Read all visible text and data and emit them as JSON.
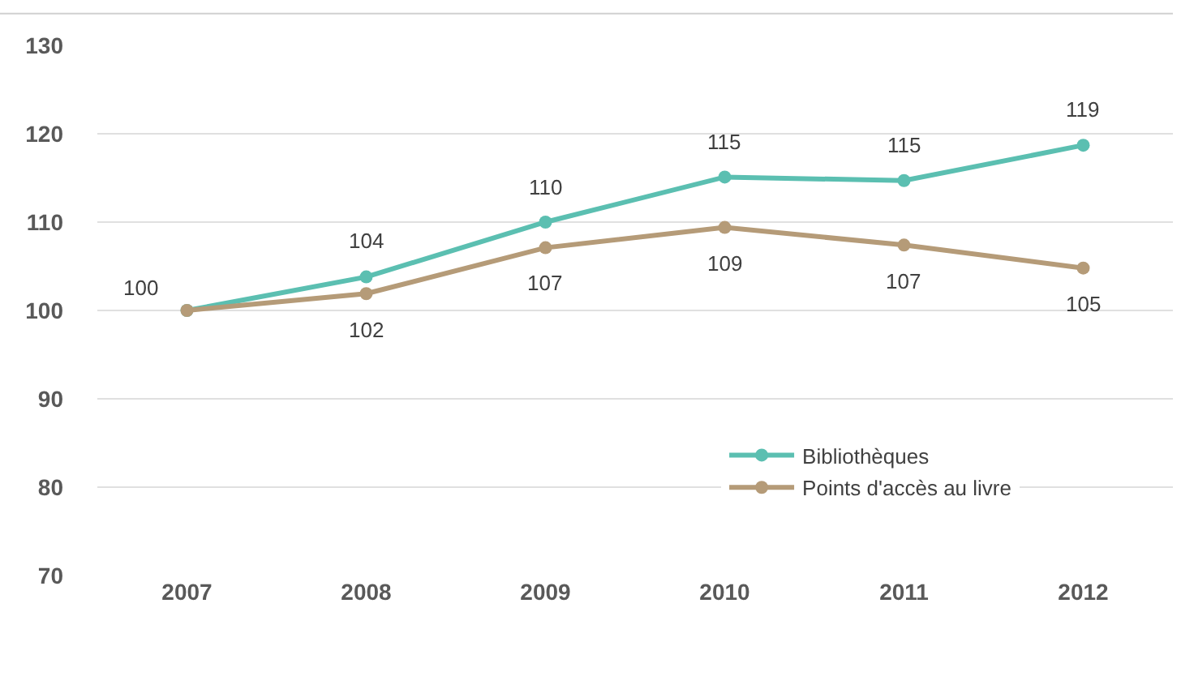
{
  "chart_data": {
    "type": "line",
    "categories": [
      "2007",
      "2008",
      "2009",
      "2010",
      "2011",
      "2012"
    ],
    "series": [
      {
        "name": "Bibliothèques",
        "color": "#5bbfb1",
        "values": [
          100,
          103.8,
          110.0,
          115.1,
          114.7,
          118.7
        ],
        "value_labels": [
          "100",
          "104",
          "110",
          "115",
          "115",
          "119"
        ]
      },
      {
        "name": "Points d'accès au livre",
        "color": "#b59b78",
        "values": [
          100,
          101.9,
          107.1,
          109.4,
          107.4,
          104.8
        ],
        "value_labels": [
          null,
          "102",
          "107",
          "109",
          "107",
          "105"
        ]
      }
    ],
    "ylim": [
      70,
      130
    ],
    "yticks": [
      70,
      80,
      90,
      100,
      110,
      120,
      130
    ],
    "grid": "y",
    "legend": "bottom right",
    "marker": "circle",
    "line_style": "solid"
  }
}
